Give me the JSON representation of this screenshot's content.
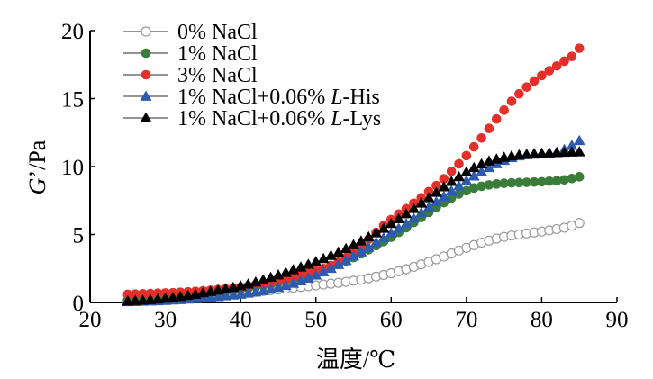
{
  "chart_data": {
    "type": "scatter",
    "xlabel": "温度/℃",
    "ylabel_italic": "G",
    "ylabel_rest": "’/Pa",
    "xlim": [
      20,
      90
    ],
    "ylim": [
      0,
      20
    ],
    "xticks": [
      "20",
      "30",
      "40",
      "50",
      "60",
      "70",
      "80",
      "90"
    ],
    "yticks": [
      "0",
      "5",
      "10",
      "15",
      "20"
    ],
    "grid": false,
    "legend_position": "top-left",
    "series": [
      {
        "name": "0% NaCl",
        "legend_parts": [
          {
            "t": "0% NaCl",
            "i": false
          }
        ],
        "marker": "circle-open",
        "color": "#9a9a9a",
        "x": [
          25,
          26,
          27,
          28,
          29,
          30,
          31,
          32,
          33,
          34,
          35,
          36,
          37,
          38,
          39,
          40,
          41,
          42,
          43,
          44,
          45,
          46,
          47,
          48,
          49,
          50,
          51,
          52,
          53,
          54,
          55,
          56,
          57,
          58,
          59,
          60,
          61,
          62,
          63,
          64,
          65,
          66,
          67,
          68,
          69,
          70,
          71,
          72,
          73,
          74,
          75,
          76,
          77,
          78,
          79,
          80,
          81,
          82,
          83,
          84,
          85
        ],
        "y": [
          0.1,
          0.12,
          0.15,
          0.18,
          0.2,
          0.23,
          0.26,
          0.3,
          0.34,
          0.38,
          0.42,
          0.46,
          0.5,
          0.55,
          0.6,
          0.66,
          0.72,
          0.78,
          0.84,
          0.9,
          0.96,
          1.02,
          1.08,
          1.14,
          1.2,
          1.26,
          1.32,
          1.38,
          1.45,
          1.52,
          1.6,
          1.68,
          1.78,
          1.9,
          2.02,
          2.15,
          2.3,
          2.45,
          2.62,
          2.8,
          2.98,
          3.18,
          3.38,
          3.6,
          3.82,
          4.02,
          4.22,
          4.4,
          4.55,
          4.7,
          4.82,
          4.92,
          5.0,
          5.08,
          5.15,
          5.22,
          5.3,
          5.4,
          5.5,
          5.65,
          5.85
        ]
      },
      {
        "name": "1% NaCl",
        "legend_parts": [
          {
            "t": "1% NaCl",
            "i": false
          }
        ],
        "marker": "circle",
        "color": "#3a7d3a",
        "x": [
          25,
          26,
          27,
          28,
          29,
          30,
          31,
          32,
          33,
          34,
          35,
          36,
          37,
          38,
          39,
          40,
          41,
          42,
          43,
          44,
          45,
          46,
          47,
          48,
          49,
          50,
          51,
          52,
          53,
          54,
          55,
          56,
          57,
          58,
          59,
          60,
          61,
          62,
          63,
          64,
          65,
          66,
          67,
          68,
          69,
          70,
          71,
          72,
          73,
          74,
          75,
          76,
          77,
          78,
          79,
          80,
          81,
          82,
          83,
          84,
          85
        ],
        "y": [
          0.18,
          0.2,
          0.23,
          0.26,
          0.3,
          0.33,
          0.37,
          0.42,
          0.47,
          0.52,
          0.58,
          0.64,
          0.72,
          0.8,
          0.88,
          0.97,
          1.06,
          1.16,
          1.26,
          1.36,
          1.48,
          1.6,
          1.74,
          1.88,
          2.03,
          2.2,
          2.38,
          2.58,
          2.8,
          3.05,
          3.3,
          3.58,
          3.88,
          4.18,
          4.48,
          4.8,
          5.15,
          5.5,
          5.88,
          6.25,
          6.62,
          7.0,
          7.35,
          7.68,
          7.98,
          8.22,
          8.42,
          8.55,
          8.65,
          8.72,
          8.77,
          8.8,
          8.82,
          8.84,
          8.86,
          8.88,
          8.92,
          8.96,
          9.02,
          9.12,
          9.25
        ]
      },
      {
        "name": "3% NaCl",
        "legend_parts": [
          {
            "t": "3% NaCl",
            "i": false
          }
        ],
        "marker": "circle",
        "color": "#e3302a",
        "x": [
          25,
          26,
          27,
          28,
          29,
          30,
          31,
          32,
          33,
          34,
          35,
          36,
          37,
          38,
          39,
          40,
          41,
          42,
          43,
          44,
          45,
          46,
          47,
          48,
          49,
          50,
          51,
          52,
          53,
          54,
          55,
          56,
          57,
          58,
          59,
          60,
          61,
          62,
          63,
          64,
          65,
          66,
          67,
          68,
          69,
          70,
          71,
          72,
          73,
          74,
          75,
          76,
          77,
          78,
          79,
          80,
          81,
          82,
          83,
          84,
          85
        ],
        "y": [
          0.6,
          0.62,
          0.64,
          0.66,
          0.68,
          0.7,
          0.72,
          0.75,
          0.78,
          0.82,
          0.86,
          0.9,
          0.95,
          1.0,
          1.06,
          1.12,
          1.2,
          1.28,
          1.38,
          1.48,
          1.6,
          1.72,
          1.86,
          2.0,
          2.16,
          2.32,
          2.5,
          2.72,
          2.98,
          3.3,
          3.7,
          4.15,
          4.65,
          5.15,
          5.65,
          6.1,
          6.5,
          6.9,
          7.3,
          7.7,
          8.15,
          8.6,
          9.1,
          9.65,
          10.2,
          10.8,
          11.45,
          12.1,
          12.8,
          13.5,
          14.15,
          14.8,
          15.35,
          15.85,
          16.3,
          16.7,
          17.05,
          17.4,
          17.75,
          18.1,
          18.7
        ]
      },
      {
        "name": "1% NaCl+0.06% L-His",
        "legend_parts": [
          {
            "t": "1% NaCl+0.06% ",
            "i": false
          },
          {
            "t": "L",
            "i": true
          },
          {
            "t": "-His",
            "i": false
          }
        ],
        "marker": "triangle",
        "color": "#2d5bb0",
        "x": [
          25,
          26,
          27,
          28,
          29,
          30,
          31,
          32,
          33,
          34,
          35,
          36,
          37,
          38,
          39,
          40,
          41,
          42,
          43,
          44,
          45,
          46,
          47,
          48,
          49,
          50,
          51,
          52,
          53,
          54,
          55,
          56,
          57,
          58,
          59,
          60,
          61,
          62,
          63,
          64,
          65,
          66,
          67,
          68,
          69,
          70,
          71,
          72,
          73,
          74,
          75,
          76,
          77,
          78,
          79,
          80,
          81,
          82,
          83,
          84,
          85
        ],
        "y": [
          0.05,
          0.06,
          0.08,
          0.1,
          0.12,
          0.14,
          0.17,
          0.2,
          0.24,
          0.28,
          0.32,
          0.37,
          0.42,
          0.48,
          0.54,
          0.6,
          0.68,
          0.76,
          0.86,
          0.98,
          1.1,
          1.24,
          1.4,
          1.58,
          1.78,
          2.0,
          2.24,
          2.5,
          2.78,
          3.08,
          3.4,
          3.72,
          4.05,
          4.4,
          4.75,
          5.1,
          5.45,
          5.8,
          6.2,
          6.6,
          7.0,
          7.4,
          7.8,
          8.2,
          8.58,
          8.95,
          9.3,
          9.62,
          9.92,
          10.2,
          10.45,
          10.65,
          10.78,
          10.86,
          10.9,
          10.92,
          10.96,
          11.05,
          11.25,
          11.55,
          11.9
        ]
      },
      {
        "name": "1% NaCl+0.06% L-Lys",
        "legend_parts": [
          {
            "t": "1% NaCl+0.06% ",
            "i": false
          },
          {
            "t": "L",
            "i": true
          },
          {
            "t": "-Lys",
            "i": false
          }
        ],
        "marker": "triangle",
        "color": "#000000",
        "x": [
          25,
          26,
          27,
          28,
          29,
          30,
          31,
          32,
          33,
          34,
          35,
          36,
          37,
          38,
          39,
          40,
          41,
          42,
          43,
          44,
          45,
          46,
          47,
          48,
          49,
          50,
          51,
          52,
          53,
          54,
          55,
          56,
          57,
          58,
          59,
          60,
          61,
          62,
          63,
          64,
          65,
          66,
          67,
          68,
          69,
          70,
          71,
          72,
          73,
          74,
          75,
          76,
          77,
          78,
          79,
          80,
          81,
          82,
          83,
          84,
          85
        ],
        "y": [
          0.1,
          0.13,
          0.16,
          0.2,
          0.25,
          0.3,
          0.36,
          0.43,
          0.51,
          0.6,
          0.7,
          0.8,
          0.9,
          1.0,
          1.1,
          1.22,
          1.35,
          1.5,
          1.66,
          1.84,
          2.02,
          2.2,
          2.4,
          2.6,
          2.8,
          3.0,
          3.22,
          3.45,
          3.7,
          3.96,
          4.24,
          4.52,
          4.82,
          5.12,
          5.45,
          5.8,
          6.15,
          6.52,
          6.9,
          7.3,
          7.7,
          8.1,
          8.5,
          8.9,
          9.25,
          9.6,
          9.92,
          10.18,
          10.4,
          10.55,
          10.68,
          10.78,
          10.85,
          10.9,
          10.94,
          10.97,
          11.0,
          11.02,
          11.04,
          11.06,
          11.08
        ]
      }
    ]
  }
}
